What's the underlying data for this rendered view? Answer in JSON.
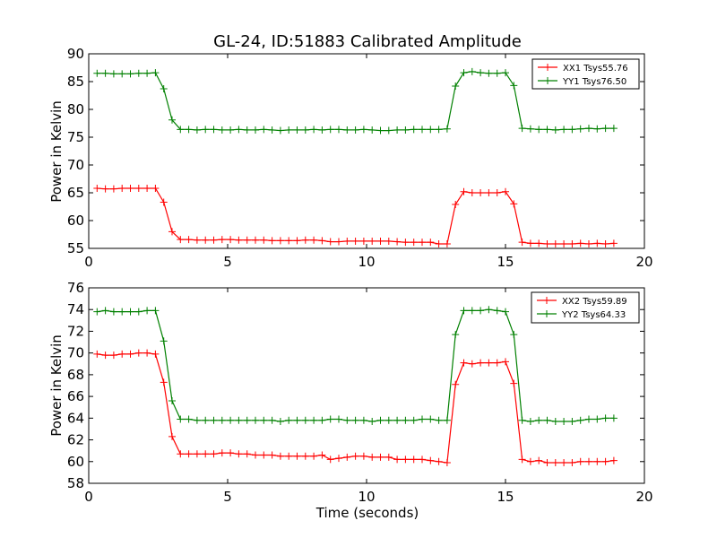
{
  "chart_data": [
    {
      "type": "line",
      "title": "GL-24, ID:51883 Calibrated Amplitude",
      "xlabel": "",
      "ylabel": "Power in Kelvin",
      "xlim": [
        0,
        20
      ],
      "ylim": [
        55,
        90
      ],
      "xticks": [
        "0",
        "5",
        "10",
        "15",
        "20"
      ],
      "yticks": [
        "55",
        "60",
        "65",
        "70",
        "75",
        "80",
        "85",
        "90"
      ],
      "legend_position": "top-right",
      "x": [
        0.3,
        0.6,
        0.9,
        1.2,
        1.5,
        1.8,
        2.1,
        2.4,
        2.7,
        3.0,
        3.3,
        3.6,
        3.9,
        4.2,
        4.5,
        4.8,
        5.1,
        5.4,
        5.7,
        6.0,
        6.3,
        6.6,
        6.9,
        7.2,
        7.5,
        7.8,
        8.1,
        8.4,
        8.7,
        9.0,
        9.3,
        9.6,
        9.9,
        10.2,
        10.5,
        10.8,
        11.1,
        11.4,
        11.7,
        12.0,
        12.3,
        12.6,
        12.9,
        13.2,
        13.5,
        13.8,
        14.1,
        14.4,
        14.7,
        15.0,
        15.3,
        15.6,
        15.9,
        16.2,
        16.5,
        16.8,
        17.1,
        17.4,
        17.7,
        18.0,
        18.3,
        18.6,
        18.9
      ],
      "series": [
        {
          "name": "XX1 Tsys55.76",
          "color": "#ff0000",
          "values": [
            65.8,
            65.7,
            65.7,
            65.8,
            65.8,
            65.8,
            65.8,
            65.8,
            63.3,
            58.0,
            56.6,
            56.6,
            56.5,
            56.5,
            56.5,
            56.6,
            56.6,
            56.5,
            56.5,
            56.5,
            56.5,
            56.4,
            56.4,
            56.4,
            56.4,
            56.5,
            56.5,
            56.4,
            56.2,
            56.2,
            56.3,
            56.3,
            56.3,
            56.3,
            56.3,
            56.3,
            56.2,
            56.1,
            56.1,
            56.1,
            56.1,
            55.8,
            55.8,
            62.9,
            65.2,
            65.0,
            65.0,
            65.0,
            65.0,
            65.2,
            63.0,
            56.1,
            55.9,
            55.9,
            55.8,
            55.8,
            55.8,
            55.8,
            55.9,
            55.8,
            55.9,
            55.8,
            55.9
          ]
        },
        {
          "name": "YY1 Tsys76.50",
          "color": "#008000",
          "values": [
            86.5,
            86.5,
            86.4,
            86.4,
            86.4,
            86.5,
            86.5,
            86.6,
            83.7,
            78.1,
            76.4,
            76.4,
            76.3,
            76.4,
            76.4,
            76.3,
            76.3,
            76.4,
            76.3,
            76.3,
            76.4,
            76.3,
            76.2,
            76.3,
            76.3,
            76.3,
            76.4,
            76.3,
            76.4,
            76.4,
            76.3,
            76.3,
            76.4,
            76.3,
            76.2,
            76.2,
            76.3,
            76.3,
            76.4,
            76.4,
            76.4,
            76.4,
            76.5,
            84.2,
            86.6,
            86.8,
            86.6,
            86.5,
            86.5,
            86.6,
            84.3,
            76.6,
            76.5,
            76.4,
            76.4,
            76.3,
            76.4,
            76.4,
            76.5,
            76.6,
            76.5,
            76.6,
            76.6
          ]
        }
      ]
    },
    {
      "type": "line",
      "title": "",
      "xlabel": "Time (seconds)",
      "ylabel": "Power in Kelvin",
      "xlim": [
        0,
        20
      ],
      "ylim": [
        58,
        76
      ],
      "xticks": [
        "0",
        "5",
        "10",
        "15",
        "20"
      ],
      "yticks": [
        "58",
        "60",
        "62",
        "64",
        "66",
        "68",
        "70",
        "72",
        "74",
        "76"
      ],
      "legend_position": "top-right",
      "x": [
        0.3,
        0.6,
        0.9,
        1.2,
        1.5,
        1.8,
        2.1,
        2.4,
        2.7,
        3.0,
        3.3,
        3.6,
        3.9,
        4.2,
        4.5,
        4.8,
        5.1,
        5.4,
        5.7,
        6.0,
        6.3,
        6.6,
        6.9,
        7.2,
        7.5,
        7.8,
        8.1,
        8.4,
        8.7,
        9.0,
        9.3,
        9.6,
        9.9,
        10.2,
        10.5,
        10.8,
        11.1,
        11.4,
        11.7,
        12.0,
        12.3,
        12.6,
        12.9,
        13.2,
        13.5,
        13.8,
        14.1,
        14.4,
        14.7,
        15.0,
        15.3,
        15.6,
        15.9,
        16.2,
        16.5,
        16.8,
        17.1,
        17.4,
        17.7,
        18.0,
        18.3,
        18.6,
        18.9
      ],
      "series": [
        {
          "name": "XX2 Tsys59.89",
          "color": "#ff0000",
          "values": [
            69.9,
            69.8,
            69.8,
            69.9,
            69.9,
            70.0,
            70.0,
            69.9,
            67.3,
            62.3,
            60.7,
            60.7,
            60.7,
            60.7,
            60.7,
            60.8,
            60.8,
            60.7,
            60.7,
            60.6,
            60.6,
            60.6,
            60.5,
            60.5,
            60.5,
            60.5,
            60.5,
            60.6,
            60.2,
            60.3,
            60.4,
            60.5,
            60.5,
            60.4,
            60.4,
            60.4,
            60.2,
            60.2,
            60.2,
            60.2,
            60.1,
            60.0,
            59.9,
            67.1,
            69.1,
            69.0,
            69.1,
            69.1,
            69.1,
            69.2,
            67.2,
            60.2,
            60.0,
            60.1,
            59.9,
            59.9,
            59.9,
            59.9,
            60.0,
            60.0,
            60.0,
            60.0,
            60.1
          ]
        },
        {
          "name": "YY2 Tsys64.33",
          "color": "#008000",
          "values": [
            73.8,
            73.9,
            73.8,
            73.8,
            73.8,
            73.8,
            73.9,
            73.9,
            71.1,
            65.6,
            63.9,
            63.9,
            63.8,
            63.8,
            63.8,
            63.8,
            63.8,
            63.8,
            63.8,
            63.8,
            63.8,
            63.8,
            63.7,
            63.8,
            63.8,
            63.8,
            63.8,
            63.8,
            63.9,
            63.9,
            63.8,
            63.8,
            63.8,
            63.7,
            63.8,
            63.8,
            63.8,
            63.8,
            63.8,
            63.9,
            63.9,
            63.8,
            63.8,
            71.7,
            73.9,
            73.9,
            73.9,
            74.0,
            73.9,
            73.8,
            71.7,
            63.8,
            63.7,
            63.8,
            63.8,
            63.7,
            63.7,
            63.7,
            63.8,
            63.9,
            63.9,
            64.0,
            64.0
          ]
        }
      ]
    }
  ]
}
